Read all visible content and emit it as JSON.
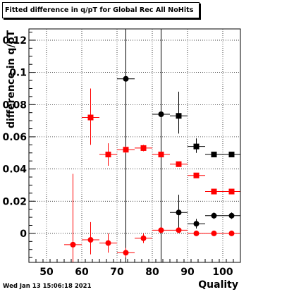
{
  "chart_data": {
    "type": "scatter",
    "title": "Fitted difference in q/pT for Global Rec All NoHits",
    "xlabel": "Quality",
    "ylabel": "difference in q/pT",
    "xlim": [
      45,
      105
    ],
    "ylim": [
      -0.018,
      0.127
    ],
    "x_ticks": [
      50,
      60,
      70,
      80,
      90,
      100
    ],
    "y_ticks": [
      0,
      0.02,
      0.04,
      0.06,
      0.08,
      0.1,
      0.12
    ],
    "x_tick_labels": [
      "50",
      "60",
      "70",
      "80",
      "90",
      "100"
    ],
    "y_tick_labels": [
      "0",
      "0.02",
      "0.04",
      "0.06",
      "0.08",
      "0.1",
      "0.12"
    ],
    "grid": true,
    "x_bin_half_width": 2.5,
    "series": [
      {
        "color": "#000000",
        "marker": "circle",
        "points": [
          {
            "x": 72.5,
            "y": 0.096,
            "ylo": -0.02,
            "yhi": 0.127
          },
          {
            "x": 82.5,
            "y": 0.074,
            "ylo": -0.02,
            "yhi": 0.127
          },
          {
            "x": 87.5,
            "y": 0.013,
            "ylo": 0.003,
            "yhi": 0.024
          },
          {
            "x": 92.5,
            "y": 0.006,
            "ylo": 0.003,
            "yhi": 0.009
          },
          {
            "x": 97.5,
            "y": 0.011,
            "ylo": 0.009,
            "yhi": 0.013
          },
          {
            "x": 102.5,
            "y": 0.011,
            "ylo": 0.009,
            "yhi": 0.013
          }
        ]
      },
      {
        "color": "#000000",
        "marker": "square",
        "points": [
          {
            "x": 87.5,
            "y": 0.073,
            "ylo": 0.062,
            "yhi": 0.088
          },
          {
            "x": 92.5,
            "y": 0.054,
            "ylo": 0.05,
            "yhi": 0.059
          },
          {
            "x": 97.5,
            "y": 0.049,
            "ylo": 0.049,
            "yhi": 0.049
          },
          {
            "x": 102.5,
            "y": 0.049,
            "ylo": 0.049,
            "yhi": 0.049
          }
        ]
      },
      {
        "color": "#ff0000",
        "marker": "square",
        "points": [
          {
            "x": 62.5,
            "y": 0.072,
            "ylo": 0.055,
            "yhi": 0.09
          },
          {
            "x": 67.5,
            "y": 0.049,
            "ylo": 0.042,
            "yhi": 0.056
          },
          {
            "x": 72.5,
            "y": 0.052,
            "ylo": 0.05,
            "yhi": 0.054
          },
          {
            "x": 77.5,
            "y": 0.053,
            "ylo": 0.051,
            "yhi": 0.055
          },
          {
            "x": 82.5,
            "y": 0.049,
            "ylo": 0.048,
            "yhi": 0.05
          },
          {
            "x": 87.5,
            "y": 0.043,
            "ylo": 0.042,
            "yhi": 0.044
          },
          {
            "x": 92.5,
            "y": 0.036,
            "ylo": 0.035,
            "yhi": 0.037
          },
          {
            "x": 97.5,
            "y": 0.026,
            "ylo": 0.026,
            "yhi": 0.026
          },
          {
            "x": 102.5,
            "y": 0.026,
            "ylo": 0.026,
            "yhi": 0.026
          }
        ]
      },
      {
        "color": "#ff0000",
        "marker": "circle",
        "points": [
          {
            "x": 57.5,
            "y": -0.007,
            "ylo": -0.02,
            "yhi": 0.037
          },
          {
            "x": 62.5,
            "y": -0.004,
            "ylo": -0.013,
            "yhi": 0.007
          },
          {
            "x": 67.5,
            "y": -0.006,
            "ylo": -0.012,
            "yhi": 0.0
          },
          {
            "x": 72.5,
            "y": -0.012,
            "ylo": -0.015,
            "yhi": -0.009
          },
          {
            "x": 77.5,
            "y": -0.003,
            "ylo": -0.006,
            "yhi": 0.0
          },
          {
            "x": 82.5,
            "y": 0.002,
            "ylo": 0.001,
            "yhi": 0.003
          },
          {
            "x": 87.5,
            "y": 0.002,
            "ylo": 0.001,
            "yhi": 0.003
          },
          {
            "x": 92.5,
            "y": 0.0,
            "ylo": 0.0,
            "yhi": 0.0
          },
          {
            "x": 97.5,
            "y": 0.0,
            "ylo": 0.0,
            "yhi": 0.0
          },
          {
            "x": 102.5,
            "y": 0.0,
            "ylo": 0.0,
            "yhi": 0.0
          }
        ]
      }
    ]
  },
  "footer": {
    "timestamp": "Wed Jan 13 15:06:18 2021"
  }
}
